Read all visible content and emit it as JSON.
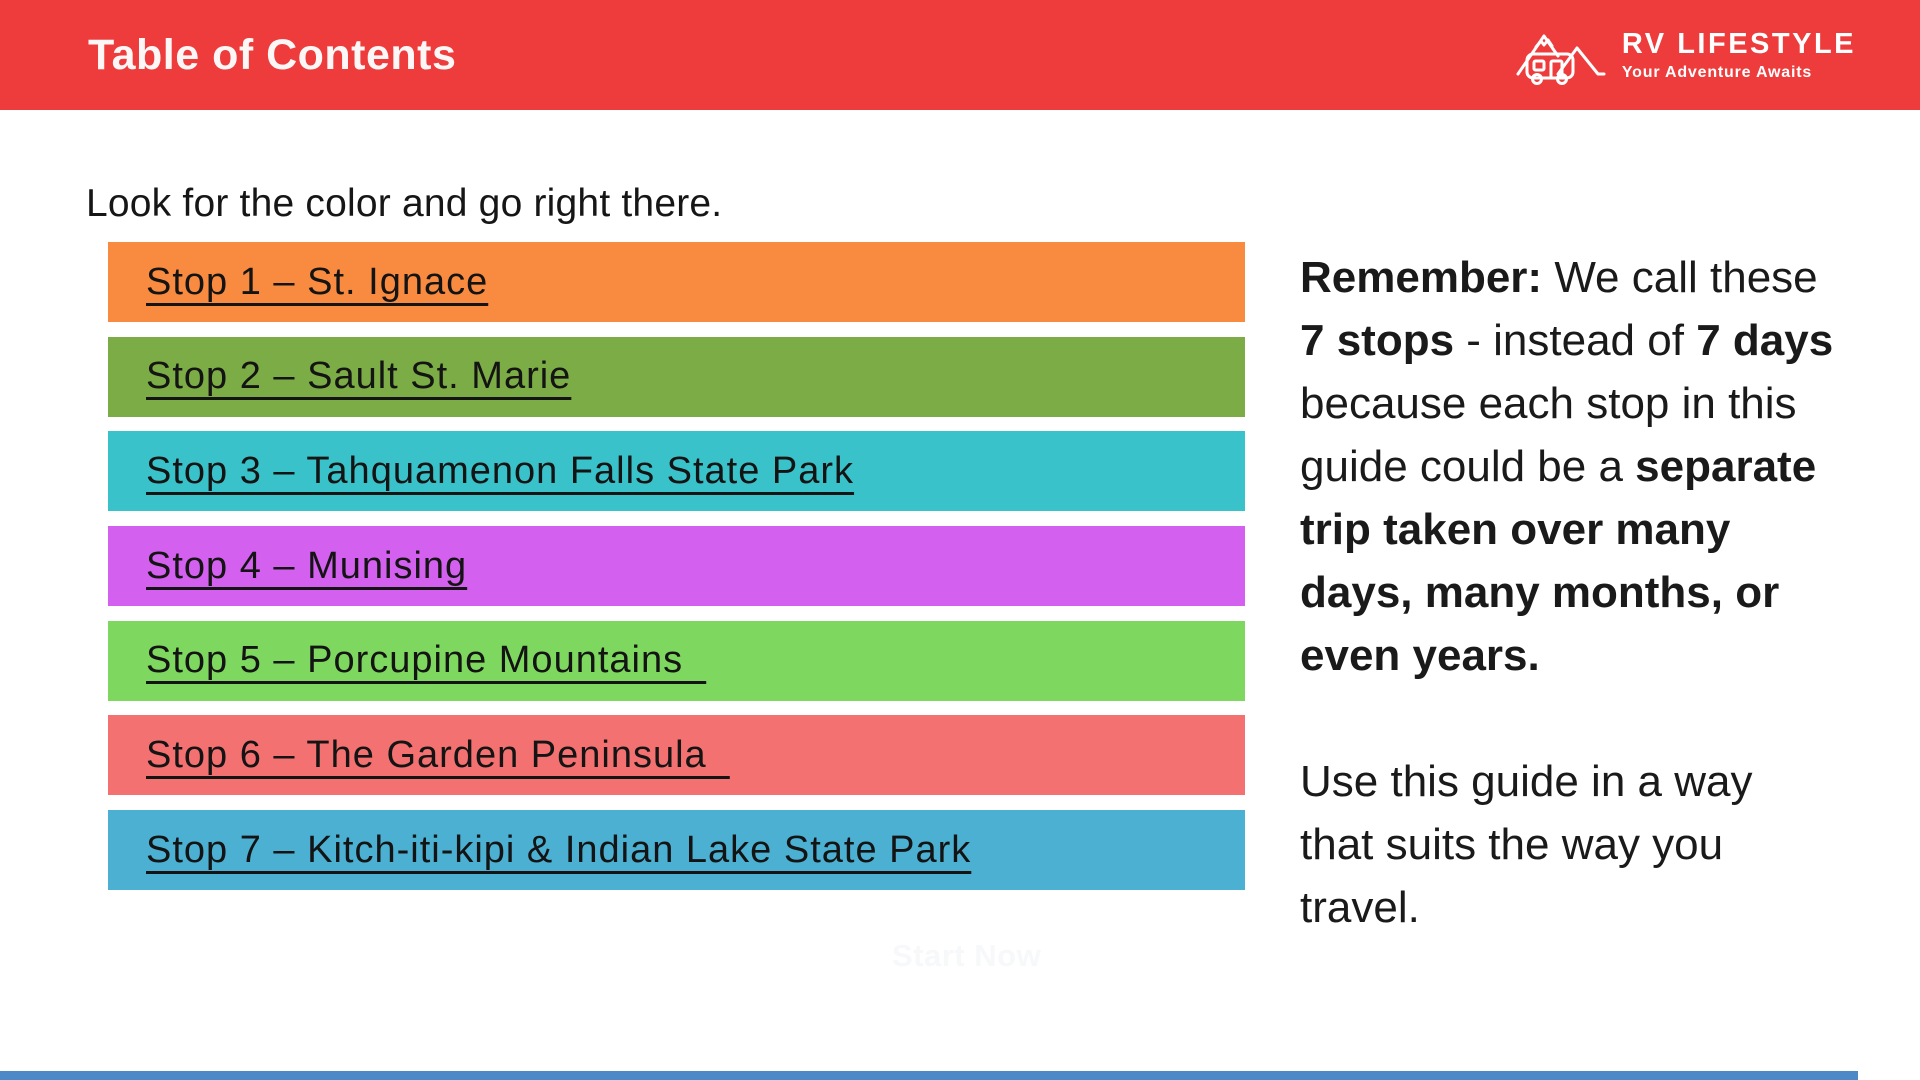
{
  "header": {
    "title": "Table of Contents",
    "bg_color": "#EE3B3B",
    "logo": {
      "brand": "RV LIFESTYLE",
      "tagline": "Your Adventure Awaits"
    }
  },
  "intro": "Look for the color and go right there.",
  "stops": [
    {
      "label": "Stop 1 – St. Ignace",
      "color": "#F98B41"
    },
    {
      "label": "Stop 2 – Sault St. Marie",
      "color": "#7BAC45"
    },
    {
      "label": "Stop 3 – Tahquamenon Falls State Park",
      "color": "#39C2C9"
    },
    {
      "label": "Stop 4 – Munising",
      "color": "#D460EF"
    },
    {
      "label": "Stop 5 – Porcupine Mountains  ",
      "color": "#7ED85F"
    },
    {
      "label": "Stop 6 – The Garden Peninsula  ",
      "color": "#F37170"
    },
    {
      "label": "Stop 7 – Kitch-iti-kipi & Indian Lake State Park",
      "color": "#4BB0D2"
    }
  ],
  "aside": {
    "p1_lines": [
      [
        {
          "t": "Remember:",
          "b": true
        },
        {
          "t": " We call these",
          "b": false
        }
      ],
      [
        {
          "t": "7 stops",
          "b": true
        },
        {
          "t": " - instead of ",
          "b": false
        },
        {
          "t": "7 days",
          "b": true
        }
      ],
      [
        {
          "t": "because each stop in this",
          "b": false
        }
      ],
      [
        {
          "t": "guide could be a ",
          "b": false
        },
        {
          "t": "separate",
          "b": true
        }
      ],
      [
        {
          "t": "trip taken over many",
          "b": true
        }
      ],
      [
        {
          "t": "days, many months, or",
          "b": true
        }
      ],
      [
        {
          "t": "even years.",
          "b": true
        }
      ]
    ],
    "p2_lines": [
      "Use this guide in a way",
      "that suits the way you",
      "travel."
    ]
  },
  "start_now": "Start Now",
  "bottom_strip_color": "#4C89C6"
}
